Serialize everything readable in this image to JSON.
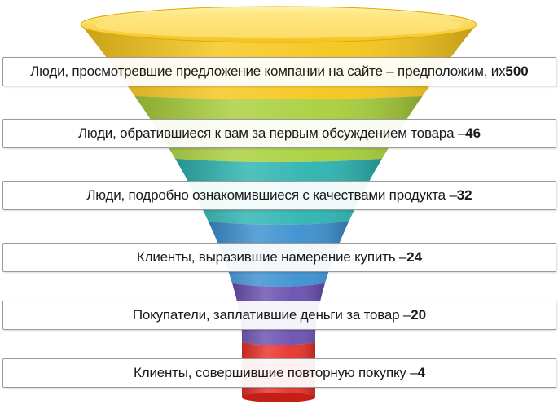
{
  "stages": [
    {
      "text": "Люди, просмотревшие предложение компании на сайте – предположим, их ",
      "value": "500",
      "color": "#f6c51a"
    },
    {
      "text": "Люди, обратившиеся к вам за первым обсуждением товара – ",
      "value": "46",
      "color": "#a8cf3a"
    },
    {
      "text": "Люди, подробно ознакомившиеся с качествами продукта – ",
      "value": "32",
      "color": "#2bb3b0"
    },
    {
      "text": "Клиенты, выразившие намерение купить – ",
      "value": "24",
      "color": "#3a8fd0"
    },
    {
      "text": "Покупатели, заплатившие деньги за товар – ",
      "value": "20",
      "color": "#6a4fb0"
    },
    {
      "text": "Клиенты, совершившие повторную покупку – ",
      "value": "4",
      "color": "#e8322a"
    }
  ]
}
